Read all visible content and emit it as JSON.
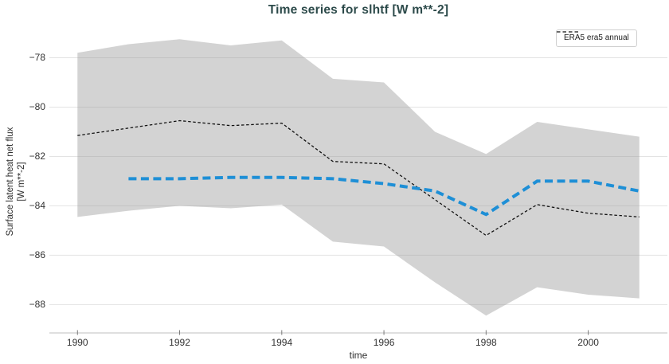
{
  "title": {
    "text": "Time series for slhtf [W m**-2]"
  },
  "legend": {
    "position": "upper right",
    "entries": [
      {
        "label": "ERA5 era5 annual",
        "line_style": "black dashed"
      }
    ]
  },
  "axes": {
    "xlabel": "time",
    "ylabel_line1": "Surface latent heat net flux",
    "ylabel_line2": "[W m**-2]"
  },
  "colors": {
    "title": "#2c4a4a",
    "era5_line": "#111111",
    "blue_line": "#1e8fd6",
    "band_fill": "rgba(150,150,150,0.42)",
    "grid": "#e3e3e3",
    "axis_spine": "#cccccc",
    "x_tick_mark": "#7a7a7a",
    "tick_label": "#333333",
    "background": "#ffffff"
  },
  "chart_data": {
    "type": "line",
    "title": "Time series for slhtf [W m**-2]",
    "xlabel": "time",
    "ylabel": "Surface latent heat net flux [W m**-2]",
    "x": [
      1990,
      1991,
      1992,
      1993,
      1994,
      1995,
      1996,
      1997,
      1998,
      1999,
      2000,
      2001
    ],
    "series": [
      {
        "name": "ERA5 era5 annual",
        "role": "line",
        "color": "#111111",
        "style": "dashed-thin",
        "values": [
          -81.15,
          -80.85,
          -80.55,
          -80.75,
          -80.65,
          -82.2,
          -82.3,
          -83.75,
          -85.2,
          -83.95,
          -84.3,
          -84.45
        ]
      },
      {
        "name": "blue dashed series (unlabeled)",
        "role": "line",
        "color": "#1e8fd6",
        "style": "dashed-thick",
        "values": [
          null,
          -82.9,
          -82.9,
          -82.85,
          -82.85,
          -82.9,
          -83.1,
          -83.4,
          -84.35,
          -83.0,
          -83.0,
          -83.4
        ]
      },
      {
        "name": "shaded band upper bound (unlabeled)",
        "role": "band-upper",
        "values": [
          -77.8,
          -77.45,
          -77.25,
          -77.5,
          -77.3,
          -78.85,
          -79.0,
          -81.0,
          -81.9,
          -80.6,
          -80.9,
          -81.2
        ]
      },
      {
        "name": "shaded band lower bound (unlabeled)",
        "role": "band-lower",
        "values": [
          -84.45,
          -84.2,
          -84.0,
          -84.1,
          -83.95,
          -85.45,
          -85.65,
          -87.1,
          -88.45,
          -87.3,
          -87.6,
          -87.75
        ]
      }
    ],
    "x_ticks": [
      1990,
      1992,
      1994,
      1996,
      1998,
      2000
    ],
    "y_ticks": [
      -78,
      -80,
      -82,
      -84,
      -86,
      -88
    ],
    "xlim": [
      1989.45,
      2001.55
    ],
    "ylim": [
      -89.15,
      -76.79
    ],
    "grid": true,
    "legend_position": "upper right"
  }
}
